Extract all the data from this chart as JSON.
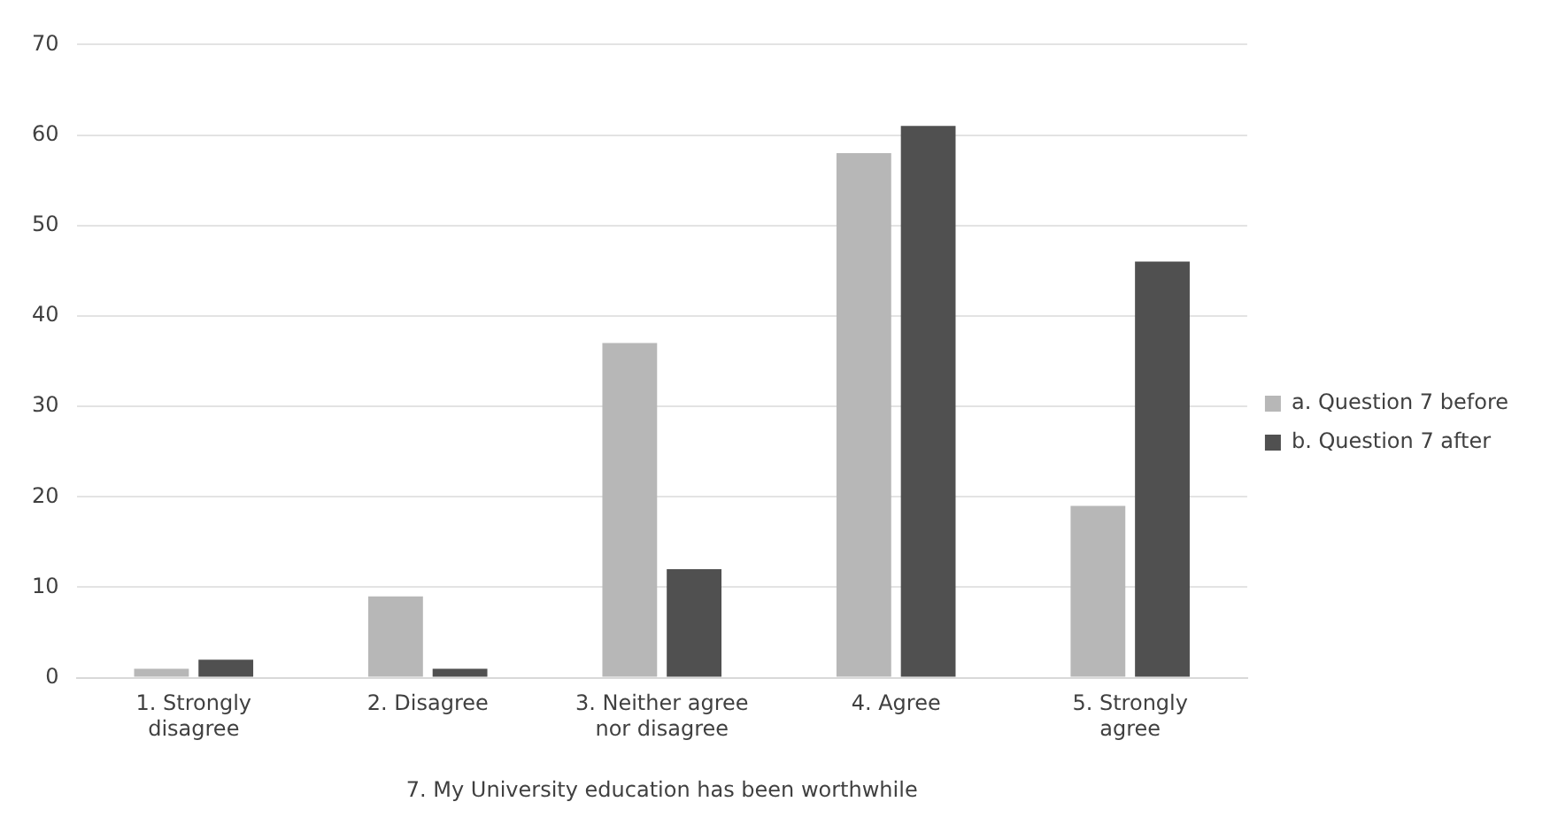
{
  "chart_data": {
    "type": "bar",
    "xlabel": "7. My University education has been worthwhile",
    "categories": [
      "1. Strongly disagree",
      "2. Disagree",
      "3. Neither agree nor disagree",
      "4. Agree",
      "5. Strongly agree"
    ],
    "series": [
      {
        "name": "a. Question 7 before",
        "color": "#b7b7b7",
        "values": [
          1,
          9,
          37,
          58,
          19
        ]
      },
      {
        "name": "b. Question 7 after",
        "color": "#505050",
        "values": [
          2,
          1,
          12,
          61,
          46
        ]
      }
    ],
    "ylim": [
      0,
      70
    ],
    "yticks": [
      0,
      10,
      20,
      30,
      40,
      50,
      60,
      70
    ],
    "grid": "y",
    "legend": "right"
  }
}
